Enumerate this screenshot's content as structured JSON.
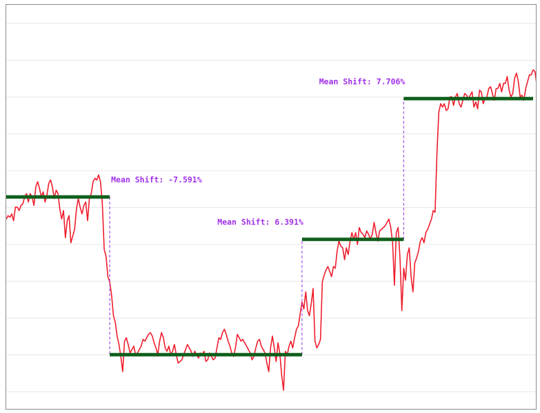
{
  "chart_data": {
    "type": "line",
    "title": "",
    "xlabel": "",
    "ylabel": "",
    "grid": true,
    "grid_axis": "horizontal",
    "x_range": [
      0,
      285
    ],
    "ylim": [
      0,
      220
    ],
    "colors": {
      "series": "#ef1d2c",
      "mean_lines": "#0e5f1c",
      "annotations": "#a030e8"
    },
    "series": [
      {
        "values": [
          101,
          103,
          102,
          104,
          100,
          108,
          108,
          106,
          109,
          110,
          114,
          116,
          111,
          116,
          114,
          109,
          120,
          123,
          119,
          114,
          117,
          111,
          115,
          122,
          124,
          120,
          113,
          118,
          116,
          107,
          101,
          106,
          90,
          100,
          103,
          87,
          91,
          95,
          107,
          113,
          108,
          104,
          109,
          111,
          100,
          113,
          116,
          123,
          125,
          124,
          127,
          123,
          110,
          83,
          79,
          67,
          64,
          56,
          44,
          40,
          32,
          27,
          20,
          11,
          29,
          31,
          27,
          22,
          24,
          26,
          21,
          22,
          24,
          26,
          30,
          29,
          31,
          33,
          34,
          32,
          28,
          25,
          21,
          29,
          34,
          31,
          25,
          23,
          26,
          21,
          23,
          27,
          21,
          16,
          17,
          18,
          21,
          24,
          27,
          25,
          23,
          20,
          23,
          21,
          19,
          22,
          21,
          23,
          17,
          18,
          22,
          20,
          18,
          19,
          25,
          31,
          30,
          34,
          36,
          33,
          29,
          26,
          22,
          20,
          25,
          33,
          31,
          29,
          30,
          28,
          26,
          24,
          22,
          18,
          20,
          25,
          29,
          30,
          26,
          24,
          22,
          16,
          11,
          25,
          32,
          25,
          17,
          28,
          22,
          9,
          0,
          23,
          21,
          26,
          29,
          25,
          31,
          36,
          38,
          45,
          52,
          48,
          58,
          47,
          44,
          51,
          60,
          29,
          25,
          27,
          30,
          64,
          68,
          71,
          73,
          70,
          67,
          73,
          72,
          82,
          88,
          85,
          84,
          77,
          84,
          80,
          88,
          93,
          89,
          93,
          86,
          96,
          93,
          92,
          90,
          94,
          92,
          89,
          92,
          99,
          93,
          88,
          94,
          95,
          96,
          97,
          99,
          101,
          96,
          87,
          62,
          93,
          96,
          78,
          47,
          72,
          65,
          80,
          84,
          67,
          58,
          75,
          78,
          82,
          88,
          90,
          87,
          93,
          95,
          98,
          101,
          106,
          105,
          140,
          164,
          169,
          167,
          169,
          165,
          166,
          173,
          173,
          168,
          173,
          175,
          169,
          167,
          171,
          175,
          174,
          172,
          174,
          176,
          167,
          170,
          166,
          177,
          176,
          169,
          172,
          173,
          178,
          179,
          175,
          171,
          178,
          178,
          181,
          176,
          181,
          181,
          185,
          177,
          173,
          175,
          184,
          187,
          182,
          173,
          174,
          171,
          178,
          182,
          186,
          186,
          189,
          188,
          180,
          169,
          162,
          153,
          139,
          158,
          135,
          144,
          150,
          160,
          174,
          178,
          182,
          184,
          186,
          181,
          179,
          188,
          187,
          180,
          173,
          172,
          180,
          181,
          178
        ]
      }
    ],
    "segment_means": [
      {
        "x_start": 0,
        "x_end": 56,
        "value": 114
      },
      {
        "x_start": 56,
        "x_end": 160,
        "value": 21
      },
      {
        "x_start": 160,
        "x_end": 215,
        "value": 89
      },
      {
        "x_start": 215,
        "x_end": 285,
        "value": 172
      }
    ],
    "annotations": [
      {
        "x": 56,
        "text": "Mean Shift: -7.591%"
      },
      {
        "x": 160,
        "text": "Mean Shift: 6.391%"
      },
      {
        "x": 215,
        "text": "Mean Shift: 7.706%"
      }
    ]
  }
}
